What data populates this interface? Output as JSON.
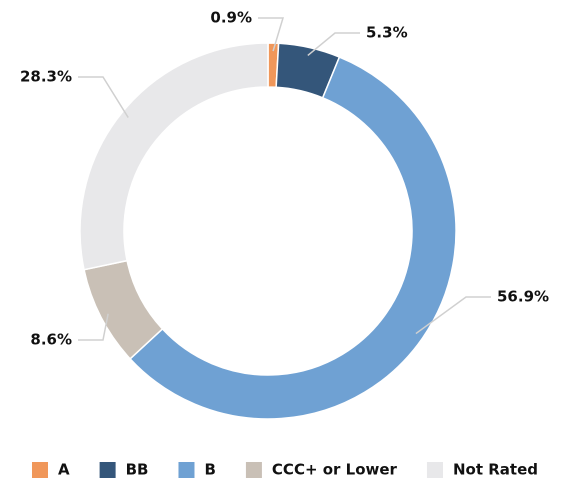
{
  "chart_data": {
    "type": "donut",
    "categories": [
      "A",
      "BB",
      "B",
      "CCC+ or Lower",
      "Not Rated"
    ],
    "values": [
      0.9,
      5.3,
      56.9,
      8.6,
      28.3
    ],
    "value_labels": [
      "0.9%",
      "5.3%",
      "56.9%",
      "8.6%",
      "28.3%"
    ],
    "colors": [
      "#f0975a",
      "#34567a",
      "#6fa1d3",
      "#c9c0b6",
      "#e8e8ea"
    ],
    "legend": "bottom"
  }
}
